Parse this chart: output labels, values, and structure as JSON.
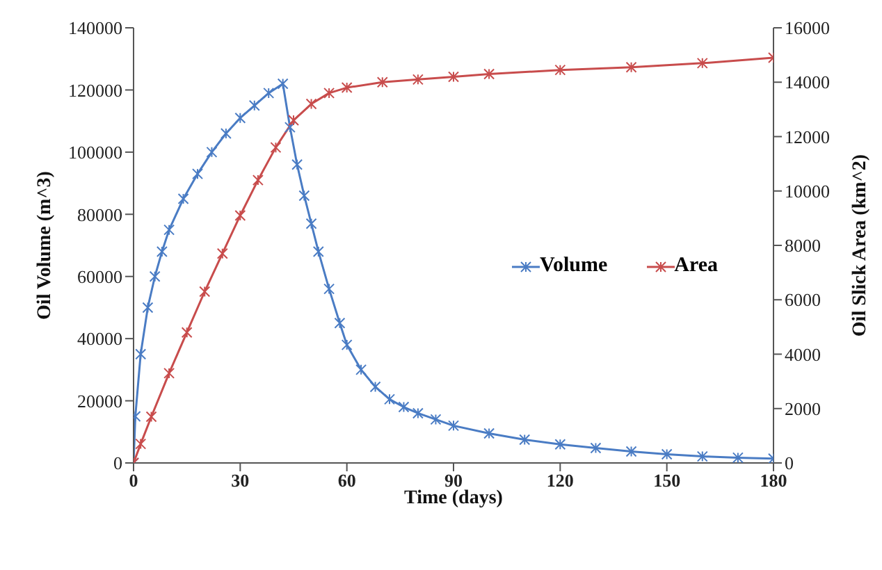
{
  "chart_data": {
    "type": "line",
    "xlabel": "Time (days)",
    "ylabel": "Oil Volume (m^3)",
    "y2label": "Oil Slick Area (km^2)",
    "xlim": [
      0,
      180
    ],
    "xticks": [
      0,
      30,
      60,
      90,
      120,
      150,
      180
    ],
    "ylim": [
      0,
      140000
    ],
    "yticks": [
      0,
      20000,
      40000,
      60000,
      80000,
      100000,
      120000,
      140000
    ],
    "y2lim": [
      0,
      16000
    ],
    "y2ticks": [
      0,
      2000,
      4000,
      6000,
      8000,
      10000,
      12000,
      14000,
      16000
    ],
    "marker": "cross",
    "line_style": "solid",
    "legend": "right",
    "series": [
      {
        "name": "Volume",
        "color": "#4a7cc4",
        "x": [
          0,
          0.5,
          2,
          4,
          6,
          8,
          10,
          14,
          18,
          22,
          26,
          30,
          34,
          38,
          42,
          44,
          46,
          48,
          50,
          52,
          55,
          58,
          60,
          64,
          68,
          72,
          76,
          80,
          85,
          90,
          100,
          110,
          120,
          130,
          140,
          150,
          160,
          170,
          180
        ],
        "values": [
          0,
          15000,
          35000,
          50000,
          60000,
          68000,
          75000,
          85000,
          93000,
          100000,
          106000,
          111000,
          115000,
          119000,
          122000,
          108000,
          96000,
          86000,
          77000,
          68000,
          56000,
          45000,
          38000,
          30000,
          24500,
          20500,
          18000,
          16000,
          14000,
          12000,
          9500,
          7500,
          6000,
          4800,
          3700,
          2800,
          2100,
          1700,
          1400
        ]
      },
      {
        "name": "Area",
        "color": "#c84c4c",
        "axis": "y2",
        "x": [
          0,
          2,
          5,
          10,
          15,
          20,
          25,
          30,
          35,
          40,
          45,
          50,
          55,
          60,
          70,
          80,
          90,
          100,
          120,
          140,
          160,
          180
        ],
        "values": [
          0,
          700,
          1700,
          3300,
          4800,
          6300,
          7700,
          9100,
          10400,
          11600,
          12600,
          13200,
          13600,
          13800,
          14000,
          14100,
          14200,
          14300,
          14450,
          14550,
          14700,
          14900
        ]
      }
    ]
  }
}
